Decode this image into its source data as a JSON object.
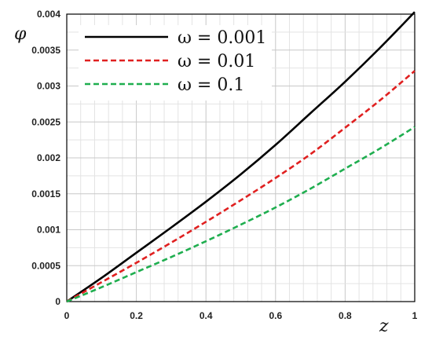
{
  "chart_data": {
    "type": "line",
    "xlabel": "z",
    "ylabel": "φ",
    "xlim": [
      0,
      1
    ],
    "ylim": [
      0,
      0.004
    ],
    "x_ticks": [
      "0",
      "0.2",
      "0.4",
      "0.6",
      "0.8",
      "1"
    ],
    "y_ticks": [
      "0",
      "0.0005",
      "0.001",
      "0.0015",
      "0.002",
      "0.0025",
      "0.003",
      "0.0035",
      "0.004"
    ],
    "grid": true,
    "legend_position": "top-left",
    "x": [
      0,
      0.1,
      0.2,
      0.3,
      0.4,
      0.5,
      0.6,
      0.7,
      0.8,
      0.9,
      1.0
    ],
    "series": [
      {
        "name": "ω = 0.001",
        "color": "#000000",
        "style": "solid",
        "values": [
          0,
          0.00033,
          0.00068,
          0.00103,
          0.00139,
          0.00177,
          0.00218,
          0.00262,
          0.00306,
          0.00353,
          0.00403
        ]
      },
      {
        "name": "ω = 0.01",
        "color": "#e02020",
        "style": "dashed",
        "values": [
          0,
          0.00027,
          0.00054,
          0.00082,
          0.00111,
          0.00141,
          0.00172,
          0.00205,
          0.00242,
          0.0028,
          0.00321
        ]
      },
      {
        "name": "ω = 0.1",
        "color": "#1fae4f",
        "style": "dashed",
        "values": [
          0,
          0.0002,
          0.00041,
          0.00062,
          0.00084,
          0.00107,
          0.00131,
          0.00157,
          0.00185,
          0.00213,
          0.00243
        ]
      }
    ]
  }
}
